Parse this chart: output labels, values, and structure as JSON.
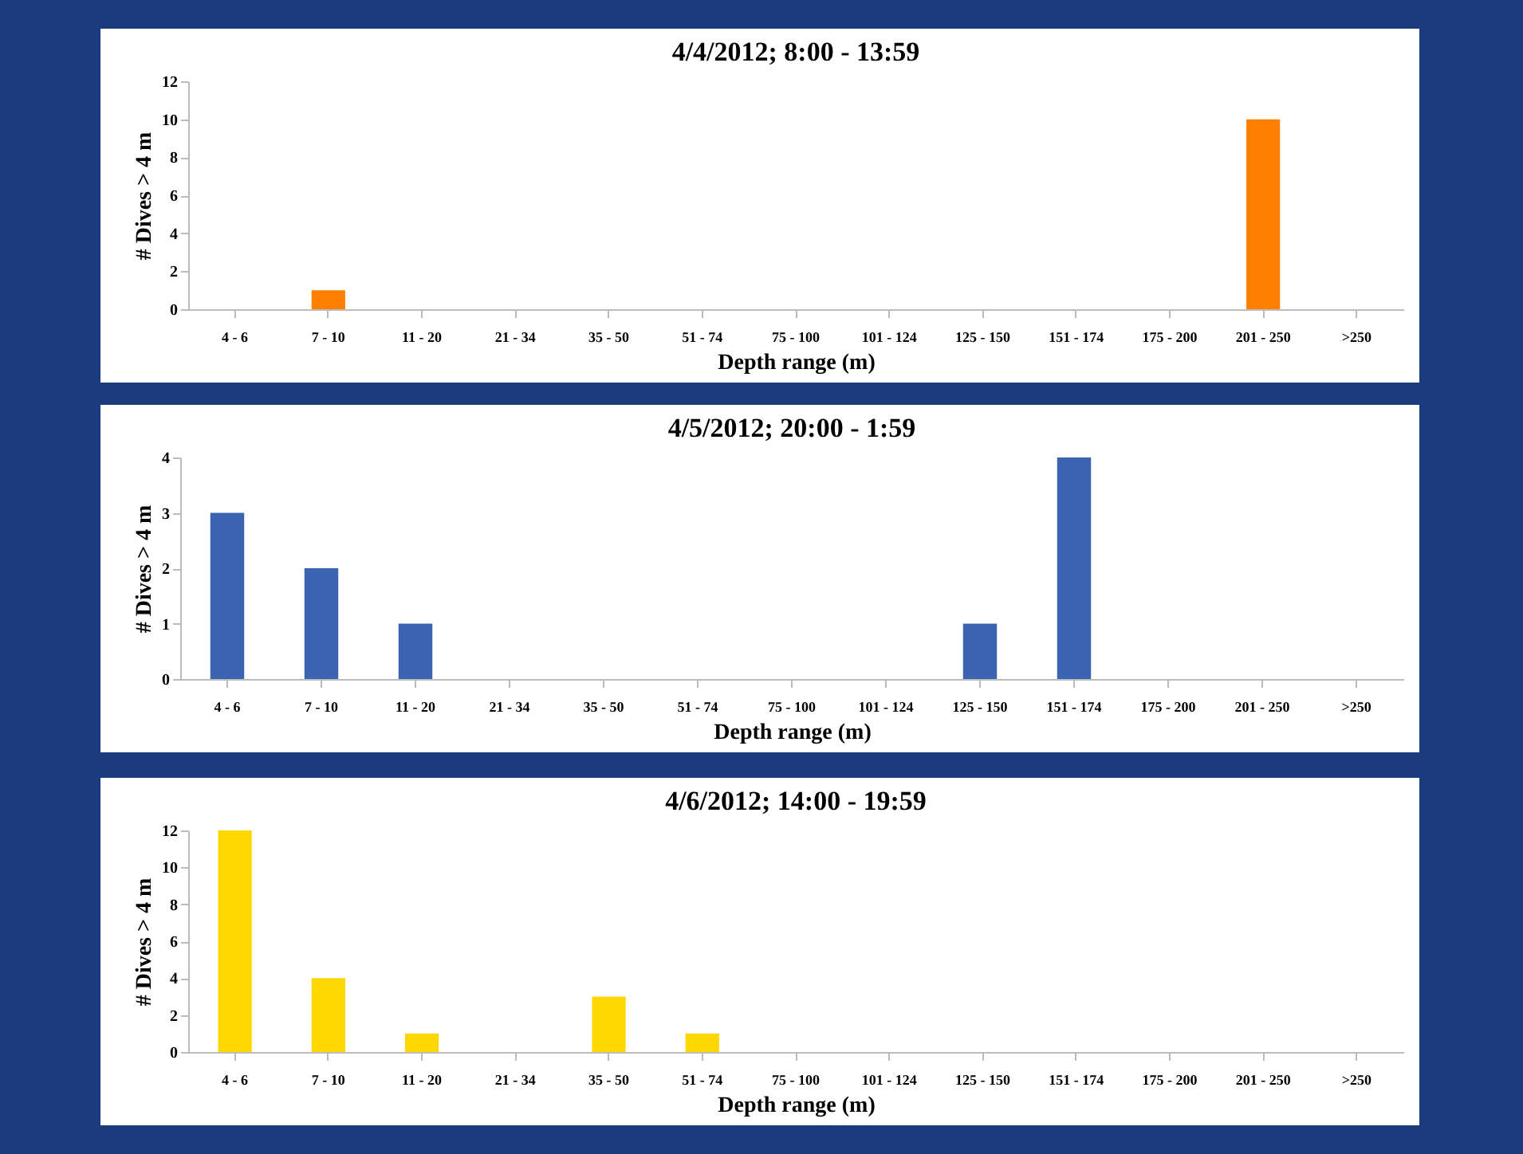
{
  "chart_data": [
    {
      "type": "bar",
      "title": "4/4/2012;  8:00 - 13:59",
      "xlabel": "Depth range (m)",
      "ylabel": "# Dives > 4 m",
      "categories": [
        "4 - 6",
        "7 - 10",
        "11 - 20",
        "21 - 34",
        "35 - 50",
        "51 - 74",
        "75 - 100",
        "101 - 124",
        "125 - 150",
        "151 - 174",
        "175 - 200",
        "201 - 250",
        ">250"
      ],
      "values": [
        0,
        1,
        0,
        0,
        0,
        0,
        0,
        0,
        0,
        0,
        0,
        10,
        0
      ],
      "color": "#ff8000",
      "ylim": [
        0,
        12
      ],
      "yticks": [
        0,
        2,
        4,
        6,
        8,
        10,
        12
      ],
      "grid": false
    },
    {
      "type": "bar",
      "title": "4/5/2012;  20:00 - 1:59",
      "xlabel": "Depth range (m)",
      "ylabel": "# Dives > 4 m",
      "categories": [
        "4 - 6",
        "7 - 10",
        "11 - 20",
        "21 - 34",
        "35 - 50",
        "51 - 74",
        "75 - 100",
        "101 - 124",
        "125 - 150",
        "151 - 174",
        "175 - 200",
        "201 - 250",
        ">250"
      ],
      "values": [
        3,
        2,
        1,
        0,
        0,
        0,
        0,
        0,
        1,
        4,
        0,
        0,
        0
      ],
      "color": "#3b64b0",
      "ylim": [
        0,
        4
      ],
      "yticks": [
        0,
        1,
        2,
        3,
        4
      ],
      "grid": false
    },
    {
      "type": "bar",
      "title": "4/6/2012;  14:00 - 19:59",
      "xlabel": "Depth range (m)",
      "ylabel": "# Dives > 4 m",
      "categories": [
        "4 - 6",
        "7 - 10",
        "11 - 20",
        "21 - 34",
        "35 - 50",
        "51 - 74",
        "75 - 100",
        "101 - 124",
        "125 - 150",
        "151 - 174",
        "175 - 200",
        "201 - 250",
        ">250"
      ],
      "values": [
        12,
        4,
        1,
        0,
        3,
        1,
        0,
        0,
        0,
        0,
        0,
        0,
        0
      ],
      "color": "#ffd700",
      "ylim": [
        0,
        12
      ],
      "yticks": [
        0,
        2,
        4,
        6,
        8,
        10,
        12
      ],
      "grid": false
    }
  ]
}
